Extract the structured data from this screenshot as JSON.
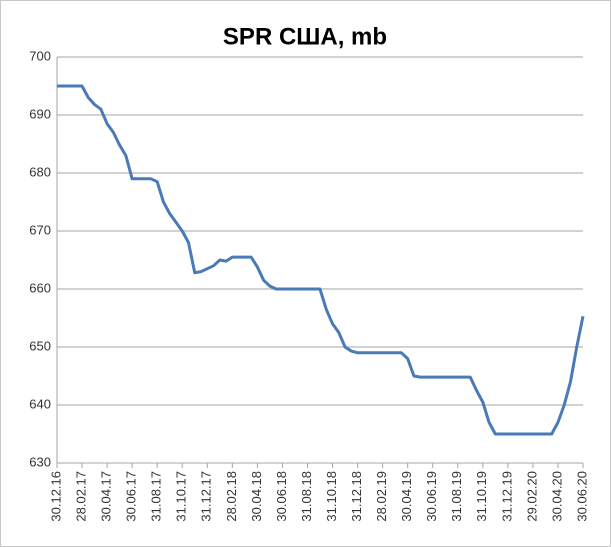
{
  "chart_data": {
    "type": "line",
    "title": "SPR США, mb",
    "categories": [
      "30.12.16",
      null,
      null,
      null,
      "28.02.17",
      null,
      null,
      null,
      "30.04.17",
      null,
      null,
      null,
      "30.06.17",
      null,
      null,
      null,
      "31.08.17",
      null,
      null,
      null,
      "31.10.17",
      null,
      null,
      null,
      "31.12.17",
      null,
      null,
      null,
      "28.02.18",
      null,
      null,
      null,
      "30.04.18",
      null,
      null,
      null,
      "30.06.18",
      null,
      null,
      null,
      "31.08.18",
      null,
      null,
      null,
      "31.10.18",
      null,
      null,
      null,
      "31.12.18",
      null,
      null,
      null,
      "28.02.19",
      null,
      null,
      null,
      "30.04.19",
      null,
      null,
      null,
      "30.06.19",
      null,
      null,
      null,
      "31.08.19",
      null,
      null,
      null,
      "31.10.19",
      null,
      null,
      null,
      "31.12.19",
      null,
      null,
      null,
      "29.02.20",
      null,
      null,
      null,
      "30.04.20",
      null,
      null,
      null,
      "30.06.20"
    ],
    "values": [
      695,
      695,
      695,
      695,
      695,
      693,
      691.8,
      691,
      688.5,
      687,
      684.8,
      683,
      679,
      679,
      679,
      679,
      678.5,
      675,
      673,
      671.5,
      670,
      668,
      662.8,
      663,
      663.5,
      664,
      665,
      664.8,
      665.5,
      665.5,
      665.5,
      665.5,
      663.8,
      661.5,
      660.5,
      660,
      660,
      660,
      660,
      660,
      660,
      660,
      660,
      656.5,
      654,
      652.5,
      650,
      649.3,
      649,
      649,
      649,
      649,
      649,
      649,
      649,
      649,
      648,
      645,
      644.8,
      644.8,
      644.8,
      644.8,
      644.8,
      644.8,
      644.8,
      644.8,
      644.8,
      642.5,
      640.5,
      637,
      635,
      635,
      635,
      635,
      635,
      635,
      635,
      635,
      635,
      635,
      637,
      640,
      644,
      650,
      655.3
    ],
    "color": "#4a7ab8",
    "ylim": [
      630,
      700
    ],
    "yticks": [
      630,
      640,
      650,
      660,
      670,
      680,
      690,
      700
    ],
    "grid": true
  }
}
